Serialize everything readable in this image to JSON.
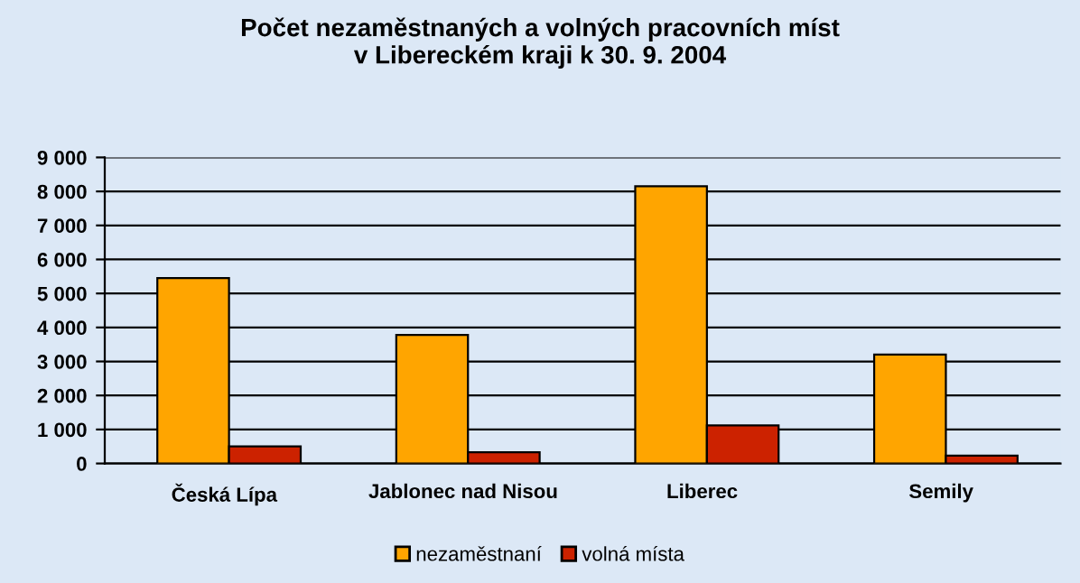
{
  "chart_data": {
    "type": "bar",
    "title": "Počet nezaměstnaných a volných pracovních míst\nv Libereckém kraji k 30. 9. 2004",
    "categories": [
      "Česká Lípa",
      "Jablonec nad Nisou",
      "Liberec",
      "Semily"
    ],
    "series": [
      {
        "name": "nezaměstnaní",
        "color": "#ffa500",
        "values": [
          5450,
          3780,
          8150,
          3200
        ]
      },
      {
        "name": "volná místa",
        "color": "#cc2200",
        "values": [
          500,
          330,
          1120,
          230
        ]
      }
    ],
    "ylim": [
      0,
      9000
    ],
    "yticks": [
      {
        "value": 0,
        "label": "0"
      },
      {
        "value": 1000,
        "label": "1 000"
      },
      {
        "value": 2000,
        "label": "2 000"
      },
      {
        "value": 3000,
        "label": "3 000"
      },
      {
        "value": 4000,
        "label": "4 000"
      },
      {
        "value": 5000,
        "label": "5 000"
      },
      {
        "value": 6000,
        "label": "6 000"
      },
      {
        "value": 7000,
        "label": "7 000"
      },
      {
        "value": 8000,
        "label": "8 000"
      },
      {
        "value": 9000,
        "label": "9 000"
      }
    ],
    "grid": "y",
    "legend": "bottom"
  }
}
